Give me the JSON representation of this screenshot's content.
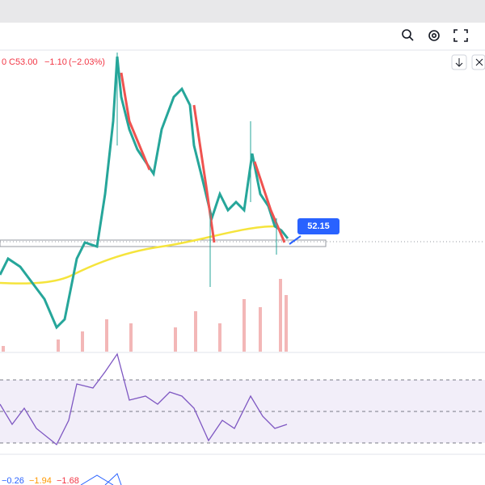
{
  "header": {
    "ohlc": {
      "prefix": "0",
      "close": "C53.00",
      "change": "−1.10",
      "change_percent": "(−2.03%)"
    }
  },
  "price_label": "52.15",
  "indicator": {
    "values": [
      "−0.26",
      "−1.94",
      "−1.68"
    ]
  }
}
